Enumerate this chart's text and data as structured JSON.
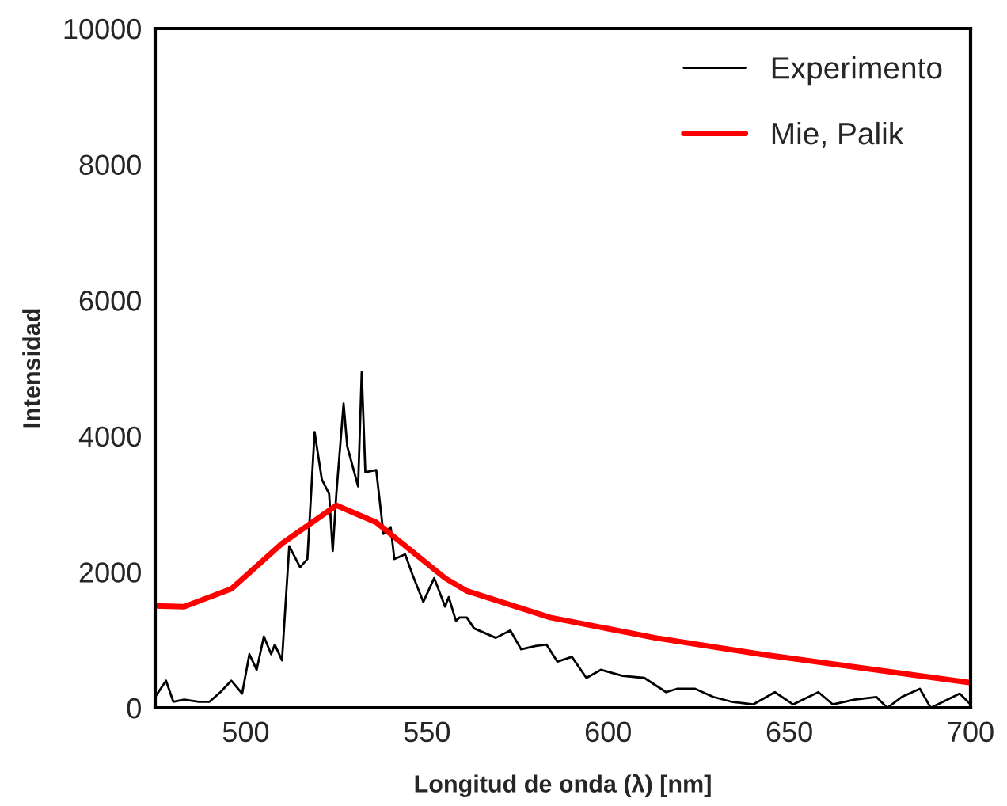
{
  "chart_data": {
    "type": "line",
    "xlabel": "Longitud de onda (λ) [nm]",
    "ylabel": "Intensidad",
    "xlim": [
      475,
      700
    ],
    "xticks": [
      500,
      550,
      600,
      650,
      700
    ],
    "ylim": [
      0,
      10000
    ],
    "yticks": [
      0,
      2000,
      4000,
      6000,
      8000,
      10000
    ],
    "grid": false,
    "legend": "top right",
    "series": [
      {
        "name": "Experimento",
        "color": "#000000",
        "x": [
          475,
          478,
          480,
          483,
          487,
          490,
          493,
          496,
          499,
          501,
          503,
          505,
          507,
          508,
          510,
          512,
          515,
          517,
          519,
          521,
          523,
          524,
          525,
          527,
          528,
          531,
          532,
          533,
          536,
          538,
          540,
          541,
          544,
          546,
          549,
          552,
          555,
          556,
          558,
          559,
          561,
          563,
          569,
          573,
          576,
          580,
          583,
          586,
          590,
          594,
          598,
          604,
          610,
          616,
          619,
          624,
          629,
          634,
          640,
          646,
          651,
          658,
          662,
          668,
          674,
          677,
          681,
          686,
          689,
          697,
          700
        ],
        "values": [
          160,
          400,
          90,
          120,
          90,
          90,
          230,
          400,
          210,
          790,
          560,
          1050,
          790,
          930,
          700,
          2380,
          2070,
          2190,
          4060,
          3360,
          3150,
          2310,
          3150,
          4480,
          3850,
          3260,
          4940,
          3470,
          3500,
          2560,
          2660,
          2190,
          2260,
          1960,
          1560,
          1910,
          1490,
          1630,
          1280,
          1330,
          1330,
          1170,
          1030,
          1140,
          860,
          910,
          930,
          680,
          750,
          440,
          560,
          470,
          440,
          230,
          280,
          280,
          160,
          90,
          50,
          230,
          50,
          230,
          50,
          120,
          160,
          0,
          160,
          280,
          0,
          210,
          50
        ]
      },
      {
        "name": "Mie, Palik",
        "color": "#ff0000",
        "x": [
          475,
          483,
          496,
          510,
          525,
          536,
          555,
          561,
          584,
          613,
          642,
          671,
          700
        ],
        "values": [
          1500,
          1490,
          1750,
          2420,
          2980,
          2730,
          1910,
          1720,
          1330,
          1030,
          790,
          580,
          370
        ]
      }
    ]
  }
}
